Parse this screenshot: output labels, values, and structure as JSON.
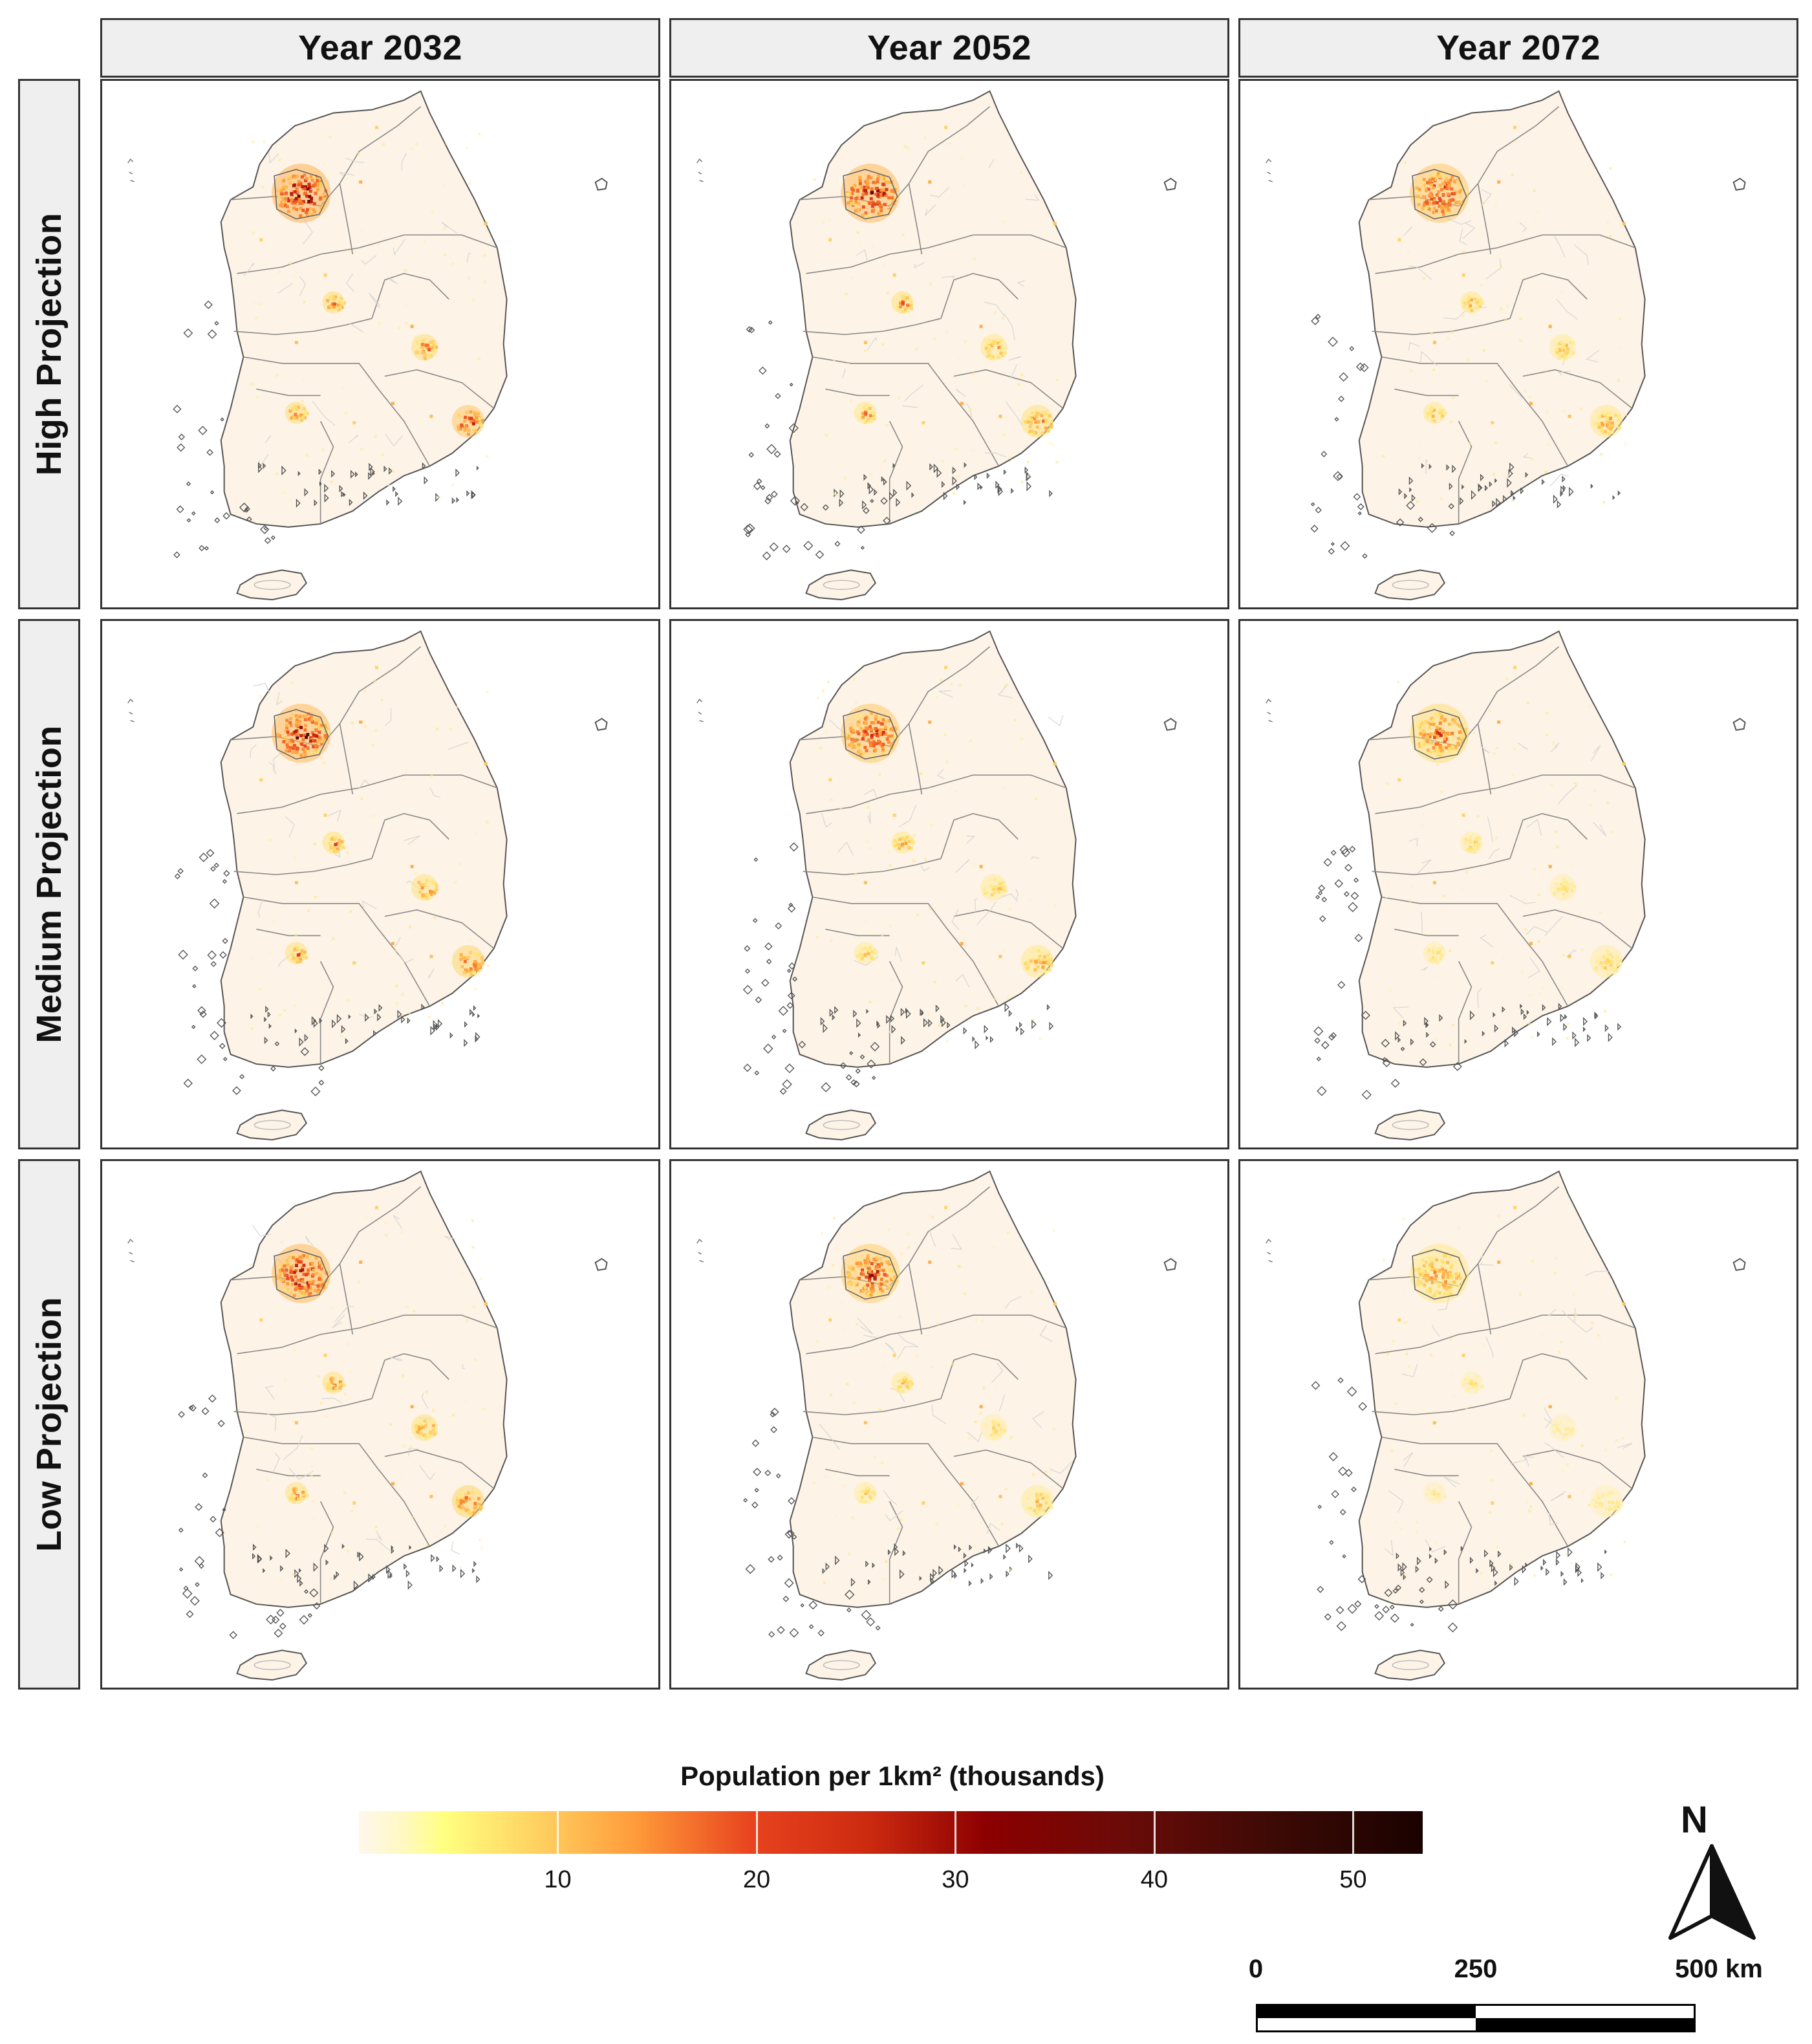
{
  "columns": [
    "Year 2032",
    "Year 2052",
    "Year 2072"
  ],
  "rows": [
    "High Projection",
    "Medium Projection",
    "Low Projection"
  ],
  "legend": {
    "title": "Population per 1km² (thousands)",
    "ticks": [
      "10",
      "20",
      "30",
      "40",
      "50"
    ],
    "tick_values": [
      10,
      20,
      30,
      40,
      50
    ],
    "min": 0,
    "max": 53.5,
    "colors": [
      "#fff7ec",
      "#ffff80",
      "#ff9b3a",
      "#e8431e",
      "#8c0000",
      "#1a0200"
    ]
  },
  "north_label": "N",
  "scale": {
    "labels": [
      "0",
      "250",
      "500 km"
    ]
  },
  "panels": [
    {
      "row": "High Projection",
      "col": "Year 2032",
      "seoul": 1.0,
      "busan": 0.85,
      "daegu": 0.7,
      "gwangju": 0.7,
      "daejeon": 0.7
    },
    {
      "row": "High Projection",
      "col": "Year 2052",
      "seoul": 0.95,
      "busan": 0.65,
      "daegu": 0.55,
      "gwangju": 0.6,
      "daejeon": 0.65
    },
    {
      "row": "High Projection",
      "col": "Year 2072",
      "seoul": 0.85,
      "busan": 0.55,
      "daegu": 0.45,
      "gwangju": 0.5,
      "daejeon": 0.55
    },
    {
      "row": "Medium Projection",
      "col": "Year 2032",
      "seoul": 0.95,
      "busan": 0.75,
      "daegu": 0.65,
      "gwangju": 0.65,
      "daejeon": 0.65
    },
    {
      "row": "Medium Projection",
      "col": "Year 2052",
      "seoul": 0.85,
      "busan": 0.55,
      "daegu": 0.45,
      "gwangju": 0.45,
      "daejeon": 0.55
    },
    {
      "row": "Medium Projection",
      "col": "Year 2072",
      "seoul": 0.7,
      "busan": 0.4,
      "daegu": 0.35,
      "gwangju": 0.35,
      "daejeon": 0.4
    },
    {
      "row": "Low Projection",
      "col": "Year 2032",
      "seoul": 0.95,
      "busan": 0.75,
      "daegu": 0.65,
      "gwangju": 0.65,
      "daejeon": 0.65
    },
    {
      "row": "Low Projection",
      "col": "Year 2052",
      "seoul": 0.8,
      "busan": 0.45,
      "daegu": 0.35,
      "gwangju": 0.4,
      "daejeon": 0.45
    },
    {
      "row": "Low Projection",
      "col": "Year 2072",
      "seoul": 0.55,
      "busan": 0.3,
      "daegu": 0.25,
      "gwangju": 0.25,
      "daejeon": 0.3
    }
  ]
}
